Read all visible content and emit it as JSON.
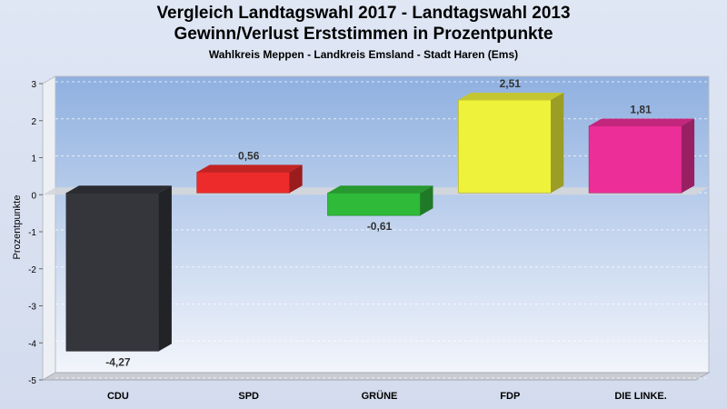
{
  "chart_data": {
    "type": "bar",
    "title": "Vergleich Landtagswahl 2017 - Landtagswahl 2013",
    "subtitle": "Gewinn/Verlust Erststimmen in Prozentpunkte",
    "caption": "Wahlkreis Meppen - Landkreis Emsland - Stadt Haren (Ems)",
    "ylabel": "Prozentpunkte",
    "xlabel": "",
    "ylim": [
      -5,
      3
    ],
    "yticks": [
      "3",
      "2",
      "1",
      "0",
      "-1",
      "-2",
      "-3",
      "-4",
      "-5"
    ],
    "categories": [
      "CDU",
      "SPD",
      "GRÜNE",
      "FDP",
      "DIE LINKE."
    ],
    "values": [
      -4.27,
      0.56,
      -0.61,
      2.51,
      1.81
    ],
    "labels": [
      "-4,27",
      "0,56",
      "-0,61",
      "2,51",
      "1,81"
    ],
    "colors": [
      "#34363c",
      "#ee2b2b",
      "#2fba3a",
      "#eef23a",
      "#ec2f98"
    ],
    "grid": true,
    "legend": "none"
  }
}
